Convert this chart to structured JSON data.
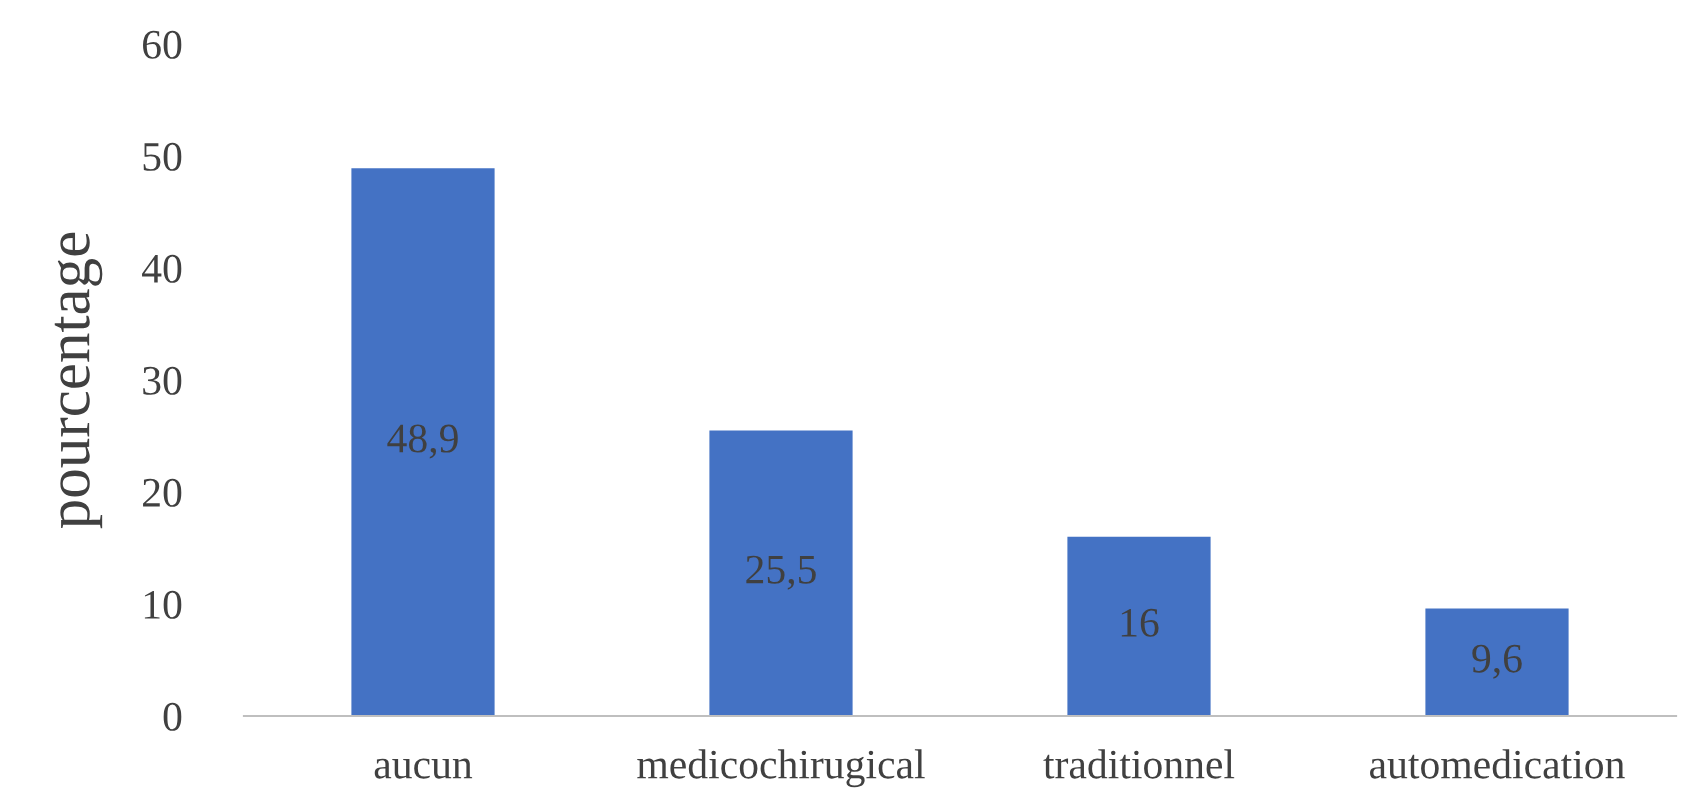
{
  "chart_data": {
    "type": "bar",
    "ylabel": "pourcentage",
    "categories": [
      "aucun",
      "medicochirugical",
      "traditionnel",
      "automedication"
    ],
    "values": [
      48.9,
      25.5,
      16,
      9.6
    ],
    "color": "#4472c4",
    "value_labels": [
      "48,9",
      "25,5",
      "16",
      "9,6"
    ],
    "ylim": [
      0,
      60
    ],
    "yticks": [
      0,
      10,
      20,
      30,
      40,
      50,
      60
    ],
    "grid": false,
    "legend": false
  }
}
